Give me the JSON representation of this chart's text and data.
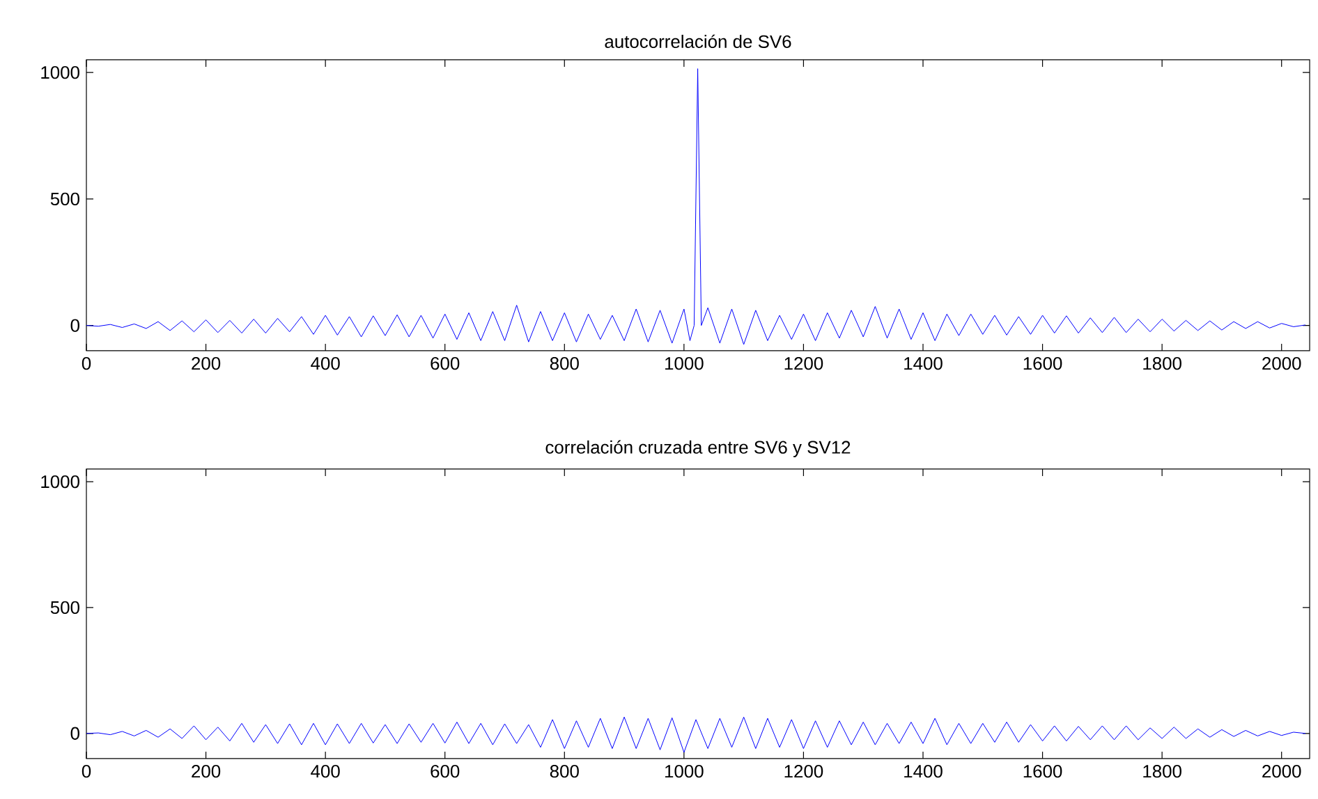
{
  "chart_data": [
    {
      "type": "line",
      "title": "autocorrelación de SV6",
      "color": "#0000ff",
      "xlim": [
        0,
        2047
      ],
      "ylim": [
        -100,
        1050
      ],
      "xticks": [
        0,
        200,
        400,
        600,
        800,
        1000,
        1200,
        1400,
        1600,
        1800,
        2000
      ],
      "yticks": [
        0,
        500,
        1000
      ],
      "x": [
        0,
        20,
        40,
        60,
        80,
        100,
        120,
        140,
        160,
        180,
        200,
        220,
        240,
        260,
        280,
        300,
        320,
        340,
        360,
        380,
        400,
        420,
        440,
        460,
        480,
        500,
        520,
        540,
        560,
        580,
        600,
        620,
        640,
        660,
        680,
        700,
        720,
        740,
        760,
        780,
        800,
        820,
        840,
        860,
        880,
        900,
        920,
        940,
        960,
        980,
        1000,
        1010,
        1017,
        1023,
        1029,
        1040,
        1060,
        1080,
        1100,
        1120,
        1140,
        1160,
        1180,
        1200,
        1220,
        1240,
        1260,
        1280,
        1300,
        1320,
        1340,
        1360,
        1380,
        1400,
        1420,
        1440,
        1460,
        1480,
        1500,
        1520,
        1540,
        1560,
        1580,
        1600,
        1620,
        1640,
        1660,
        1680,
        1700,
        1720,
        1740,
        1760,
        1780,
        1800,
        1820,
        1840,
        1860,
        1880,
        1900,
        1920,
        1940,
        1960,
        1980,
        2000,
        2020,
        2040
      ],
      "values": [
        0,
        -3,
        4,
        -8,
        6,
        -12,
        15,
        -20,
        18,
        -25,
        22,
        -28,
        20,
        -30,
        25,
        -30,
        28,
        -25,
        35,
        -35,
        40,
        -38,
        35,
        -45,
        38,
        -40,
        42,
        -45,
        40,
        -50,
        45,
        -55,
        50,
        -60,
        55,
        -60,
        80,
        -65,
        55,
        -60,
        50,
        -65,
        45,
        -55,
        40,
        -60,
        65,
        -65,
        60,
        -70,
        65,
        -60,
        0,
        1015,
        0,
        70,
        -70,
        65,
        -75,
        60,
        -60,
        40,
        -55,
        45,
        -60,
        50,
        -50,
        60,
        -45,
        75,
        -50,
        65,
        -55,
        50,
        -60,
        45,
        -40,
        45,
        -35,
        40,
        -38,
        35,
        -35,
        40,
        -30,
        38,
        -30,
        30,
        -28,
        32,
        -28,
        25,
        -25,
        25,
        -22,
        20,
        -20,
        18,
        -18,
        15,
        -12,
        15,
        -10,
        8,
        -5,
        2
      ]
    },
    {
      "type": "line",
      "title": "correlación cruzada entre SV6 y SV12",
      "color": "#0000ff",
      "xlim": [
        0,
        2047
      ],
      "ylim": [
        -100,
        1050
      ],
      "xticks": [
        0,
        200,
        400,
        600,
        800,
        1000,
        1200,
        1400,
        1600,
        1800,
        2000
      ],
      "yticks": [
        0,
        500,
        1000
      ],
      "x": [
        0,
        20,
        40,
        60,
        80,
        100,
        120,
        140,
        160,
        180,
        200,
        220,
        240,
        260,
        280,
        300,
        320,
        340,
        360,
        380,
        400,
        420,
        440,
        460,
        480,
        500,
        520,
        540,
        560,
        580,
        600,
        620,
        640,
        660,
        680,
        700,
        720,
        740,
        760,
        780,
        800,
        820,
        840,
        860,
        880,
        900,
        920,
        940,
        960,
        980,
        1000,
        1020,
        1040,
        1060,
        1080,
        1100,
        1120,
        1140,
        1160,
        1180,
        1200,
        1220,
        1240,
        1260,
        1280,
        1300,
        1320,
        1340,
        1360,
        1380,
        1400,
        1420,
        1440,
        1460,
        1480,
        1500,
        1520,
        1540,
        1560,
        1580,
        1600,
        1620,
        1640,
        1660,
        1680,
        1700,
        1720,
        1740,
        1760,
        1780,
        1800,
        1820,
        1840,
        1860,
        1880,
        1900,
        1920,
        1940,
        1960,
        1980,
        2000,
        2020,
        2040
      ],
      "values": [
        0,
        2,
        -5,
        8,
        -10,
        12,
        -15,
        18,
        -20,
        30,
        -25,
        25,
        -30,
        40,
        -35,
        35,
        -40,
        38,
        -45,
        40,
        -45,
        38,
        -40,
        40,
        -38,
        35,
        -40,
        38,
        -35,
        40,
        -38,
        45,
        -40,
        40,
        -45,
        38,
        -40,
        35,
        -55,
        55,
        -60,
        50,
        -55,
        60,
        -60,
        65,
        -60,
        60,
        -65,
        62,
        -75,
        55,
        -60,
        60,
        -55,
        65,
        -60,
        60,
        -55,
        55,
        -60,
        50,
        -55,
        50,
        -45,
        45,
        -45,
        40,
        -40,
        45,
        -40,
        60,
        -45,
        40,
        -40,
        40,
        -35,
        45,
        -35,
        35,
        -30,
        30,
        -30,
        28,
        -25,
        30,
        -25,
        30,
        -25,
        22,
        -20,
        25,
        -20,
        18,
        -15,
        15,
        -12,
        12,
        -10,
        8,
        -8,
        5,
        0
      ]
    }
  ]
}
